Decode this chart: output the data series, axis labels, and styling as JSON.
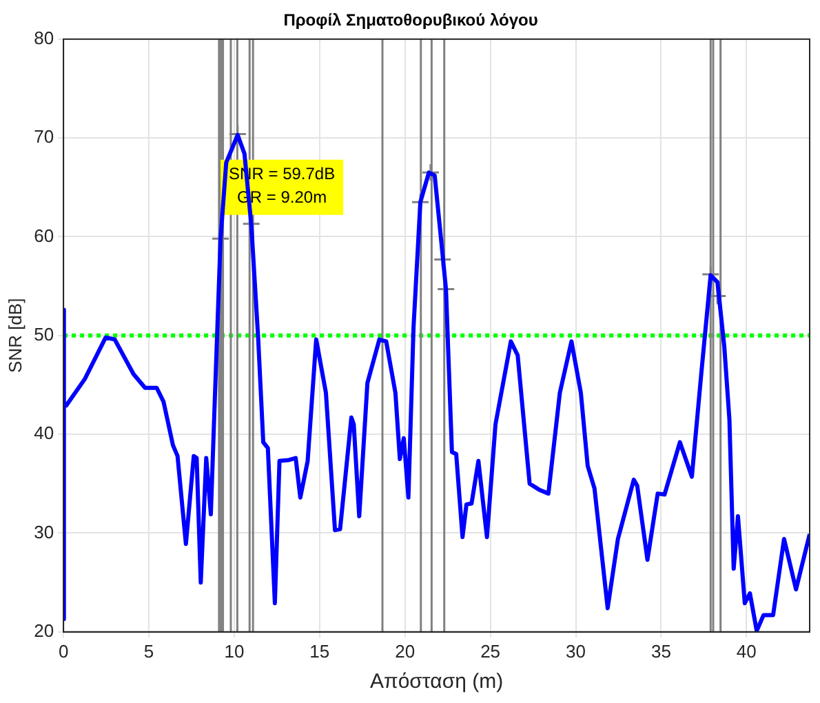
{
  "chart_data": {
    "type": "line",
    "title": "Προφίλ Σηματοθορυβικού λόγου",
    "xlabel": "Απόσταση (m)",
    "ylabel": "SNR [dB]",
    "xlim": [
      0,
      43.7
    ],
    "xticks": [
      0,
      5,
      10,
      15,
      20,
      25,
      30,
      35,
      40
    ],
    "ylim": [
      20,
      80
    ],
    "yticks": [
      20,
      30,
      40,
      50,
      60,
      70,
      80
    ],
    "grid": true,
    "legend": false,
    "series": [
      {
        "color": "#0000ff",
        "marker": "none",
        "line_style": "solid",
        "x": [
          0,
          0,
          0.05,
          0.16,
          1.25,
          2.47,
          3.0,
          4.1,
          4.78,
          5.46,
          5.86,
          6.41,
          6.68,
          7.17,
          7.63,
          7.8,
          8.04,
          8.36,
          8.63,
          8.85,
          9.2,
          9.53,
          10.2,
          10.6,
          11.0,
          11.4,
          11.7,
          11.97,
          12.38,
          12.65,
          13.2,
          13.6,
          13.87,
          14.3,
          14.8,
          15.37,
          15.9,
          16.2,
          16.86,
          17.0,
          17.32,
          17.8,
          18.5,
          18.9,
          19.44,
          19.7,
          19.93,
          20.2,
          20.5,
          20.9,
          21.4,
          21.74,
          22.23,
          22.4,
          22.75,
          23.0,
          23.37,
          23.6,
          23.9,
          24.3,
          24.8,
          25.3,
          26.2,
          26.6,
          27.3,
          27.85,
          28.4,
          29.07,
          29.75,
          30.3,
          30.7,
          31.1,
          31.87,
          32.47,
          33.4,
          33.6,
          34.2,
          34.8,
          35.2,
          36.1,
          36.8,
          37.35,
          37.9,
          38.3,
          38.7,
          39.0,
          39.25,
          39.5,
          39.9,
          40.2,
          40.6,
          41.0,
          41.56,
          42.2,
          42.9,
          43.7
        ],
        "values": [
          21.3,
          52.6,
          42.9,
          42.9,
          45.6,
          49.8,
          49.6,
          46.1,
          44.7,
          44.7,
          43.3,
          38.9,
          37.8,
          28.9,
          37.8,
          37.6,
          25.0,
          37.6,
          31.9,
          42.9,
          59.8,
          67.5,
          70.3,
          68.4,
          61.2,
          49.8,
          39.2,
          38.6,
          22.9,
          37.3,
          37.4,
          37.6,
          33.6,
          37.3,
          49.6,
          44.2,
          30.3,
          30.4,
          41.7,
          41.0,
          31.7,
          45.2,
          49.6,
          49.4,
          44.2,
          37.5,
          39.6,
          33.6,
          50.8,
          63.5,
          66.5,
          66.2,
          57.7,
          54.7,
          38.2,
          38.0,
          29.6,
          32.9,
          33.0,
          37.3,
          29.6,
          41.0,
          49.4,
          48.0,
          35.0,
          34.4,
          34.0,
          44.2,
          49.4,
          44.2,
          36.8,
          34.5,
          22.4,
          29.4,
          35.4,
          34.8,
          27.3,
          34.0,
          33.9,
          39.2,
          35.7,
          46.1,
          56.1,
          55.4,
          48.9,
          41.5,
          26.4,
          31.7,
          22.9,
          23.9,
          20.1,
          21.7,
          21.7,
          29.4,
          24.3,
          29.9
        ]
      },
      {
        "type": "scatter",
        "color": "#808080",
        "marker": "cross",
        "x": [
          9.2,
          10.2,
          11.0,
          20.9,
          21.5,
          22.2,
          22.4,
          37.9,
          38.3
        ],
        "values": [
          59.8,
          70.4,
          61.3,
          63.5,
          66.5,
          57.7,
          54.7,
          56.2,
          54.0
        ]
      }
    ],
    "ref_lines": [
      {
        "axis": "y",
        "value": 50,
        "color": "#00ff00",
        "line_style": "dotted"
      },
      {
        "axis": "x",
        "value": 9.11,
        "color": "#808080",
        "line_style": "solid"
      },
      {
        "axis": "x",
        "value": 9.22,
        "color": "#808080",
        "line_style": "solid"
      },
      {
        "axis": "x",
        "value": 9.34,
        "color": "#808080",
        "line_style": "solid"
      },
      {
        "axis": "x",
        "value": 9.8,
        "color": "#808080",
        "line_style": "solid"
      },
      {
        "axis": "x",
        "value": 10.18,
        "color": "#808080",
        "line_style": "solid"
      },
      {
        "axis": "x",
        "value": 10.9,
        "color": "#808080",
        "line_style": "solid"
      },
      {
        "axis": "x",
        "value": 11.1,
        "color": "#808080",
        "line_style": "solid"
      },
      {
        "axis": "x",
        "value": 18.68,
        "color": "#808080",
        "line_style": "solid"
      },
      {
        "axis": "x",
        "value": 20.93,
        "color": "#808080",
        "line_style": "solid"
      },
      {
        "axis": "x",
        "value": 21.56,
        "color": "#808080",
        "line_style": "solid"
      },
      {
        "axis": "x",
        "value": 22.3,
        "color": "#808080",
        "line_style": "solid"
      },
      {
        "axis": "x",
        "value": 37.9,
        "color": "#808080",
        "line_style": "solid"
      },
      {
        "axis": "x",
        "value": 38.05,
        "color": "#808080",
        "line_style": "solid"
      },
      {
        "axis": "x",
        "value": 38.48,
        "color": "#808080",
        "line_style": "solid"
      }
    ],
    "annotations": [
      {
        "text": "SNR = 59.7dB\nGR = 9.20m",
        "x": 9.2,
        "y": 59.7
      }
    ]
  }
}
